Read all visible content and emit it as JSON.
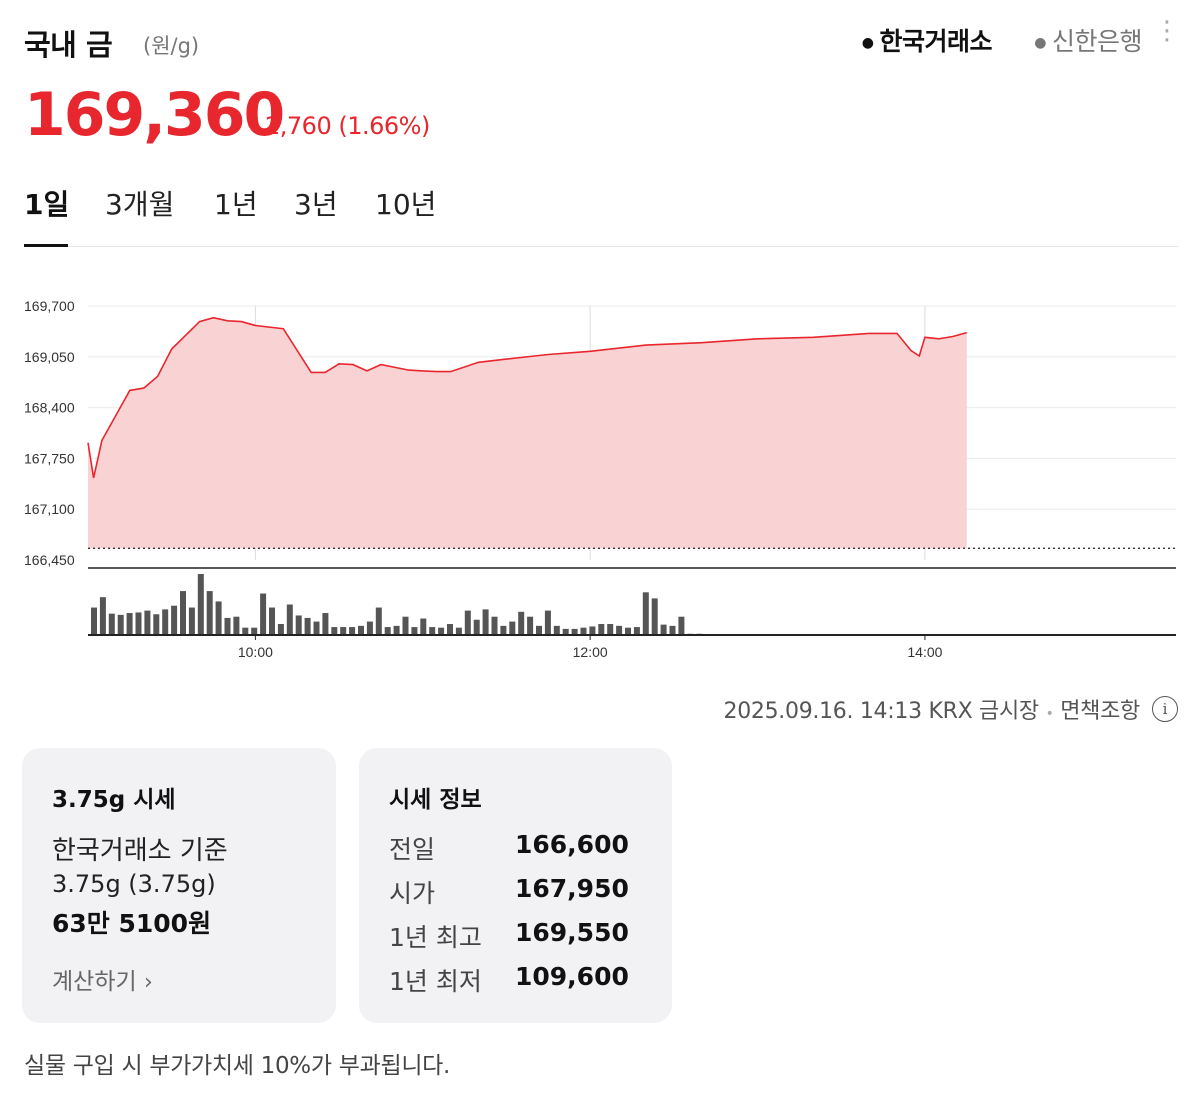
{
  "header": {
    "title": "국내 금",
    "unit": "(원/g)",
    "sources": [
      {
        "label": "한국거래소",
        "active": true
      },
      {
        "label": "신한은행",
        "active": false
      }
    ],
    "more_icon": "kebab-menu-icon"
  },
  "quote": {
    "price": "169,360",
    "change_icon": "triangle-up-icon",
    "change": "2,760",
    "change_pct": "(1.66%)",
    "color_up": "#e8262d"
  },
  "tabs": [
    {
      "label": "1일",
      "active": true
    },
    {
      "label": "3개월",
      "active": false
    },
    {
      "label": "1년",
      "active": false
    },
    {
      "label": "3년",
      "active": false
    },
    {
      "label": "10년",
      "active": false
    }
  ],
  "chart_data": {
    "type": "area",
    "y_ticks": [
      "169,700",
      "169,050",
      "168,400",
      "167,750",
      "167,100",
      "166,450"
    ],
    "ylim": [
      166450,
      169700
    ],
    "x_ticks": [
      "10:00",
      "12:00",
      "14:00"
    ],
    "xlim": [
      "09:00",
      "15:30"
    ],
    "baseline": 166600,
    "grid": true,
    "line_color": "#e8262d",
    "fill_color": "#f9d3d4",
    "series": [
      {
        "x": [
          "09:00",
          "09:02",
          "09:05",
          "09:10",
          "09:15",
          "09:20",
          "09:25",
          "09:30",
          "09:40",
          "09:45",
          "09:50",
          "09:55",
          "10:00",
          "10:10",
          "10:20",
          "10:25",
          "10:30",
          "10:35",
          "10:40",
          "10:45",
          "10:55",
          "11:00",
          "11:05",
          "11:10",
          "11:20",
          "11:30",
          "11:40",
          "11:45",
          "12:00",
          "12:10",
          "12:20",
          "12:40",
          "13:00",
          "13:20",
          "13:40",
          "14:00",
          "13:50",
          "13:55",
          "13:58",
          "14:05",
          "14:10",
          "14:15"
        ],
        "y": [
          167950,
          167500,
          167980,
          168300,
          168620,
          168650,
          168800,
          169150,
          169500,
          169550,
          169510,
          169500,
          169450,
          169410,
          168850,
          168850,
          168960,
          168950,
          168870,
          168950,
          168880,
          168870,
          168860,
          168860,
          168980,
          169020,
          169060,
          169080,
          169120,
          169160,
          169200,
          169230,
          169280,
          169300,
          169350,
          169300,
          169350,
          169130,
          169060,
          169280,
          169310,
          169360
        ]
      }
    ],
    "volume_bars": [
      0.45,
      0.62,
      0.35,
      0.33,
      0.36,
      0.37,
      0.4,
      0.34,
      0.42,
      0.48,
      0.72,
      0.45,
      1.0,
      0.72,
      0.55,
      0.28,
      0.3,
      0.12,
      0.12,
      0.68,
      0.45,
      0.18,
      0.5,
      0.32,
      0.28,
      0.22,
      0.36,
      0.13,
      0.13,
      0.13,
      0.15,
      0.22,
      0.45,
      0.13,
      0.15,
      0.3,
      0.13,
      0.27,
      0.13,
      0.12,
      0.18,
      0.12,
      0.4,
      0.25,
      0.42,
      0.3,
      0.15,
      0.22,
      0.38,
      0.3,
      0.15,
      0.4,
      0.15,
      0.1,
      0.1,
      0.12,
      0.14,
      0.18,
      0.18,
      0.15,
      0.12,
      0.13,
      0.7,
      0.6,
      0.17,
      0.15,
      0.3,
      0.02,
      0.02
    ]
  },
  "status": {
    "updated": "2025.09.16. 14:13 KRX 금시장",
    "separator": "•",
    "disclaimer": "면책조항",
    "info_icon": "info-circle-icon"
  },
  "card_price": {
    "title": "3.75g 시세",
    "basis": "한국거래소 기준",
    "weight": "3.75g (3.75g)",
    "amount": "63만 5100원",
    "calc_link": "계산하기",
    "chevron": "chevron-right-icon"
  },
  "card_info": {
    "title": "시세 정보",
    "rows": [
      {
        "label": "전일",
        "value": "166,600"
      },
      {
        "label": "시가",
        "value": "167,950"
      },
      {
        "label": "1년 최고",
        "value": "169,550"
      },
      {
        "label": "1년 최저",
        "value": "109,600"
      }
    ]
  },
  "footnote": "실물 구입 시 부가가치세 10%가 부과됩니다."
}
